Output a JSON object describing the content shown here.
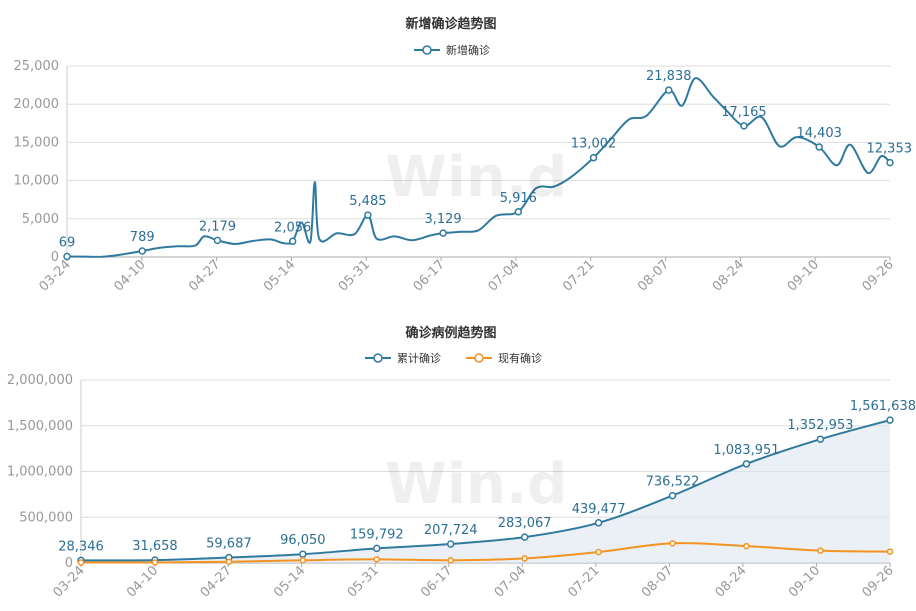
{
  "watermark": "Win.d",
  "chart_data": [
    {
      "type": "line",
      "title": "新增确诊趋势图",
      "series": [
        {
          "name": "新增确诊",
          "color": "#2f7a9e"
        }
      ],
      "yticks": [
        "0",
        "5,000",
        "10,000",
        "15,000",
        "20,000",
        "25,000"
      ],
      "ylim": [
        0,
        25000
      ],
      "xticks": [
        "03-24",
        "04-10",
        "04-27",
        "05-14",
        "05-31",
        "06-17",
        "07-04",
        "07-21",
        "08-07",
        "08-24",
        "09-10",
        "09-26"
      ],
      "x_range": [
        "2020-03-24",
        "2020-09-26"
      ],
      "data": [
        [
          "2020-03-24",
          69
        ],
        [
          "2020-03-28",
          50
        ],
        [
          "2020-04-01",
          40
        ],
        [
          "2020-04-05",
          300
        ],
        [
          "2020-04-10",
          789
        ],
        [
          "2020-04-14",
          1200
        ],
        [
          "2020-04-18",
          1400
        ],
        [
          "2020-04-22",
          1500
        ],
        [
          "2020-04-24",
          2700
        ],
        [
          "2020-04-27",
          2179
        ],
        [
          "2020-05-01",
          1700
        ],
        [
          "2020-05-05",
          2100
        ],
        [
          "2020-05-09",
          2300
        ],
        [
          "2020-05-12",
          1800
        ],
        [
          "2020-05-14",
          2056
        ],
        [
          "2020-05-16",
          4500
        ],
        [
          "2020-05-18",
          2000
        ],
        [
          "2020-05-19",
          9800
        ],
        [
          "2020-05-20",
          2400
        ],
        [
          "2020-05-24",
          3100
        ],
        [
          "2020-05-28",
          3000
        ],
        [
          "2020-05-31",
          5485
        ],
        [
          "2020-06-02",
          2400
        ],
        [
          "2020-06-06",
          2700
        ],
        [
          "2020-06-10",
          2200
        ],
        [
          "2020-06-14",
          2800
        ],
        [
          "2020-06-17",
          3129
        ],
        [
          "2020-06-21",
          3300
        ],
        [
          "2020-06-25",
          3500
        ],
        [
          "2020-06-29",
          5400
        ],
        [
          "2020-07-04",
          5916
        ],
        [
          "2020-07-08",
          9000
        ],
        [
          "2020-07-12",
          9200
        ],
        [
          "2020-07-16",
          10500
        ],
        [
          "2020-07-21",
          13002
        ],
        [
          "2020-07-25",
          15500
        ],
        [
          "2020-07-29",
          18000
        ],
        [
          "2020-08-02",
          18500
        ],
        [
          "2020-08-07",
          21838
        ],
        [
          "2020-08-10",
          19800
        ],
        [
          "2020-08-13",
          23400
        ],
        [
          "2020-08-17",
          21000
        ],
        [
          "2020-08-20",
          19200
        ],
        [
          "2020-08-24",
          17165
        ],
        [
          "2020-08-28",
          18300
        ],
        [
          "2020-09-01",
          14500
        ],
        [
          "2020-09-05",
          15700
        ],
        [
          "2020-09-10",
          14403
        ],
        [
          "2020-09-14",
          12000
        ],
        [
          "2020-09-17",
          14700
        ],
        [
          "2020-09-21",
          11000
        ],
        [
          "2020-09-24",
          13200
        ],
        [
          "2020-09-26",
          12353
        ]
      ],
      "labels": [
        {
          "x": "2020-03-24",
          "text": "69"
        },
        {
          "x": "2020-04-10",
          "text": "789"
        },
        {
          "x": "2020-04-27",
          "text": "2,179"
        },
        {
          "x": "2020-05-14",
          "text": "2,056"
        },
        {
          "x": "2020-05-31",
          "text": "5,485"
        },
        {
          "x": "2020-06-17",
          "text": "3,129"
        },
        {
          "x": "2020-07-04",
          "text": "5,916"
        },
        {
          "x": "2020-07-21",
          "text": "13,002"
        },
        {
          "x": "2020-08-07",
          "text": "21,838"
        },
        {
          "x": "2020-08-24",
          "text": "17,165"
        },
        {
          "x": "2020-09-10",
          "text": "14,403"
        },
        {
          "x": "2020-09-26",
          "text": "12,353"
        }
      ]
    },
    {
      "type": "area",
      "title": "确诊病例趋势图",
      "series": [
        {
          "name": "累计确诊",
          "color": "#2f7a9e",
          "data": [
            [
              "2020-03-24",
              28346
            ],
            [
              "2020-04-10",
              31658
            ],
            [
              "2020-04-27",
              59687
            ],
            [
              "2020-05-14",
              96050
            ],
            [
              "2020-05-31",
              159792
            ],
            [
              "2020-06-17",
              207724
            ],
            [
              "2020-07-04",
              283067
            ],
            [
              "2020-07-21",
              439477
            ],
            [
              "2020-08-07",
              736522
            ],
            [
              "2020-08-24",
              1083951
            ],
            [
              "2020-09-10",
              1352953
            ],
            [
              "2020-09-26",
              1561638
            ]
          ],
          "labels": [
            "28,346",
            "31,658",
            "59,687",
            "96,050",
            "159,792",
            "207,724",
            "283,067",
            "439,477",
            "736,522",
            "1,083,951",
            "1,352,953",
            "1,561,638"
          ]
        },
        {
          "name": "现有确诊",
          "color": "#f39322",
          "data": [
            [
              "2020-03-24",
              5000
            ],
            [
              "2020-04-10",
              6000
            ],
            [
              "2020-04-27",
              14000
            ],
            [
              "2020-05-14",
              30000
            ],
            [
              "2020-05-31",
              40000
            ],
            [
              "2020-06-17",
              30000
            ],
            [
              "2020-07-04",
              50000
            ],
            [
              "2020-07-21",
              120000
            ],
            [
              "2020-08-07",
              215000
            ],
            [
              "2020-08-24",
              185000
            ],
            [
              "2020-09-10",
              135000
            ],
            [
              "2020-09-26",
              125000
            ]
          ]
        }
      ],
      "yticks": [
        "0",
        "500,000",
        "1,000,000",
        "1,500,000",
        "2,000,000"
      ],
      "ylim": [
        0,
        2000000
      ],
      "xticks": [
        "03-24",
        "04-10",
        "04-27",
        "05-14",
        "05-31",
        "06-17",
        "07-04",
        "07-21",
        "08-07",
        "08-24",
        "09-10",
        "09-26"
      ],
      "x_range": [
        "2020-03-24",
        "2020-09-26"
      ]
    }
  ]
}
